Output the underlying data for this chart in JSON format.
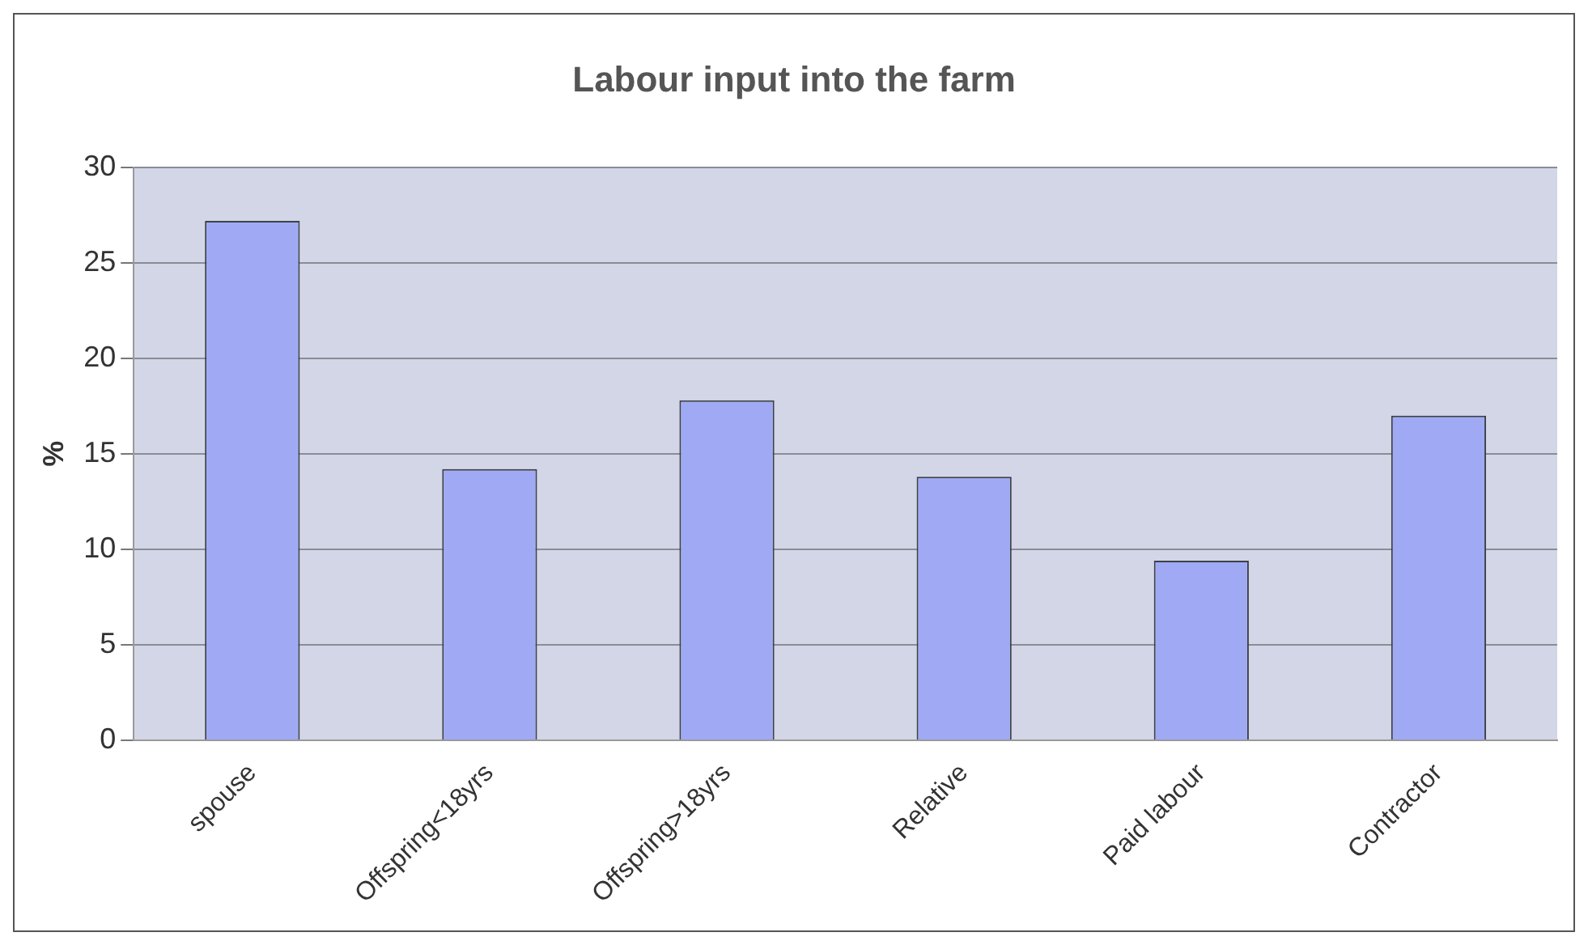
{
  "chart_data": {
    "type": "bar",
    "title": "Labour input into the farm",
    "ylabel": "%",
    "categories": [
      "spouse",
      "Offspring<18yrs",
      "Offspring>18yrs",
      "Relative",
      "Paid labour",
      "Contractor"
    ],
    "values": [
      27.2,
      14.2,
      17.8,
      13.8,
      9.4,
      17.0
    ],
    "color": "#a0aaf4",
    "ylim": [
      0,
      30
    ],
    "yticks": [
      0,
      5,
      10,
      15,
      20,
      25,
      30
    ],
    "grid": "y",
    "legend": false
  }
}
